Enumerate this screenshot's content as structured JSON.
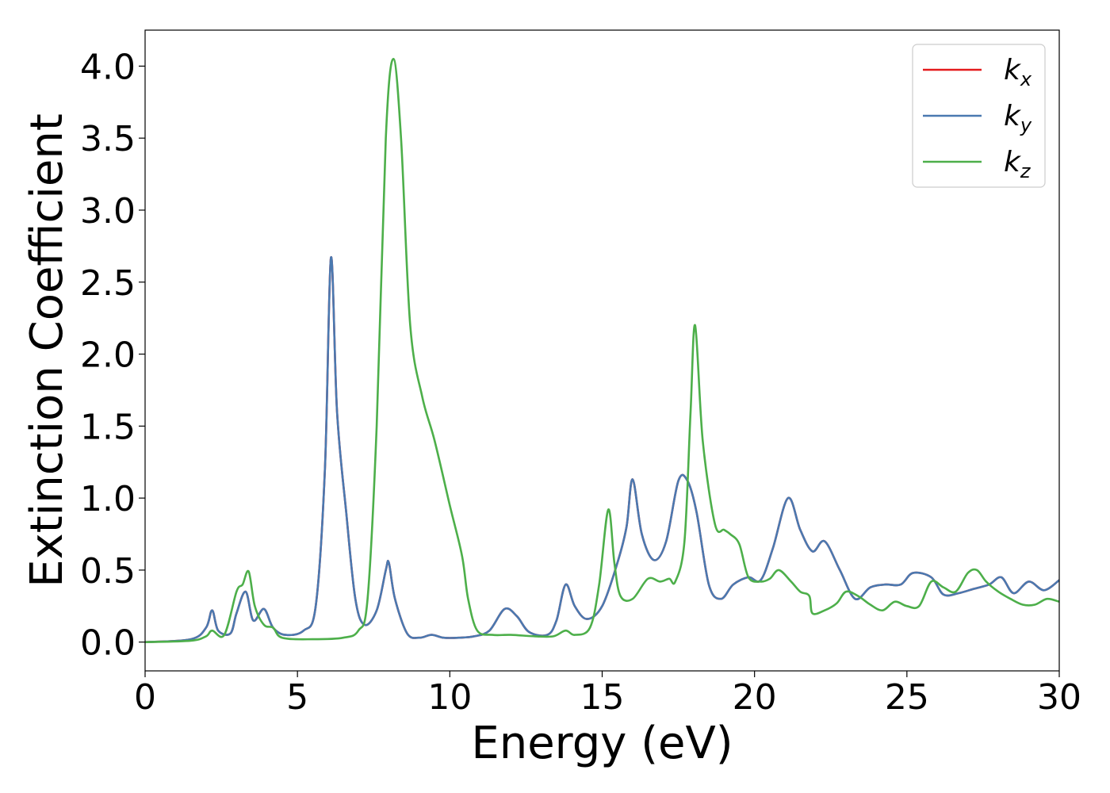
{
  "chart_data": {
    "type": "line",
    "title": "",
    "xlabel": "Energy (eV)",
    "ylabel": "Extinction Coefficient",
    "xlim": [
      0,
      30
    ],
    "ylim": [
      -0.2,
      4.25
    ],
    "xticks": [
      0,
      5,
      10,
      15,
      20,
      25,
      30
    ],
    "xtick_labels": [
      "0",
      "5",
      "10",
      "15",
      "20",
      "25",
      "30"
    ],
    "yticks": [
      0.0,
      0.5,
      1.0,
      1.5,
      2.0,
      2.5,
      3.0,
      3.5,
      4.0
    ],
    "ytick_labels": [
      "0.0",
      "0.5",
      "1.0",
      "1.5",
      "2.0",
      "2.5",
      "3.0",
      "3.5",
      "4.0"
    ],
    "grid": false,
    "legend_position": "top-right",
    "series": [
      {
        "name": "kx",
        "legend_base": "k",
        "legend_sub": "x",
        "color": "#e41a1c",
        "points": [
          [
            0,
            0.0
          ],
          [
            1.5,
            0.02
          ],
          [
            2.0,
            0.1
          ],
          [
            2.2,
            0.22
          ],
          [
            2.4,
            0.08
          ],
          [
            2.8,
            0.06
          ],
          [
            3.0,
            0.2
          ],
          [
            3.3,
            0.35
          ],
          [
            3.55,
            0.15
          ],
          [
            3.9,
            0.23
          ],
          [
            4.2,
            0.1
          ],
          [
            4.6,
            0.05
          ],
          [
            5.2,
            0.08
          ],
          [
            5.6,
            0.25
          ],
          [
            5.9,
            1.2
          ],
          [
            6.1,
            2.67
          ],
          [
            6.3,
            1.6
          ],
          [
            6.6,
            0.9
          ],
          [
            6.9,
            0.3
          ],
          [
            7.2,
            0.12
          ],
          [
            7.6,
            0.22
          ],
          [
            7.9,
            0.5
          ],
          [
            8.0,
            0.55
          ],
          [
            8.2,
            0.3
          ],
          [
            8.6,
            0.06
          ],
          [
            9.0,
            0.03
          ],
          [
            9.4,
            0.05
          ],
          [
            9.8,
            0.03
          ],
          [
            10.3,
            0.03
          ],
          [
            10.8,
            0.04
          ],
          [
            11.3,
            0.08
          ],
          [
            11.8,
            0.23
          ],
          [
            12.2,
            0.18
          ],
          [
            12.6,
            0.07
          ],
          [
            13.2,
            0.05
          ],
          [
            13.5,
            0.15
          ],
          [
            13.8,
            0.4
          ],
          [
            14.1,
            0.25
          ],
          [
            14.5,
            0.16
          ],
          [
            15.0,
            0.25
          ],
          [
            15.5,
            0.55
          ],
          [
            15.8,
            0.8
          ],
          [
            16.0,
            1.13
          ],
          [
            16.3,
            0.75
          ],
          [
            16.7,
            0.57
          ],
          [
            17.1,
            0.7
          ],
          [
            17.5,
            1.12
          ],
          [
            17.8,
            1.12
          ],
          [
            18.1,
            0.9
          ],
          [
            18.5,
            0.4
          ],
          [
            18.9,
            0.3
          ],
          [
            19.3,
            0.4
          ],
          [
            19.8,
            0.45
          ],
          [
            20.2,
            0.43
          ],
          [
            20.6,
            0.65
          ],
          [
            21.1,
            1.0
          ],
          [
            21.5,
            0.78
          ],
          [
            21.9,
            0.63
          ],
          [
            22.3,
            0.7
          ],
          [
            22.8,
            0.5
          ],
          [
            23.3,
            0.3
          ],
          [
            23.8,
            0.38
          ],
          [
            24.3,
            0.4
          ],
          [
            24.8,
            0.4
          ],
          [
            25.2,
            0.48
          ],
          [
            25.8,
            0.45
          ],
          [
            26.2,
            0.33
          ],
          [
            26.7,
            0.34
          ],
          [
            27.2,
            0.37
          ],
          [
            27.7,
            0.4
          ],
          [
            28.1,
            0.45
          ],
          [
            28.5,
            0.34
          ],
          [
            29.0,
            0.42
          ],
          [
            29.5,
            0.36
          ],
          [
            30.0,
            0.43
          ]
        ]
      },
      {
        "name": "ky",
        "legend_base": "k",
        "legend_sub": "y",
        "color": "#4a79b0",
        "points": [
          [
            0,
            0.0
          ],
          [
            1.5,
            0.02
          ],
          [
            2.0,
            0.1
          ],
          [
            2.2,
            0.22
          ],
          [
            2.4,
            0.08
          ],
          [
            2.8,
            0.06
          ],
          [
            3.0,
            0.2
          ],
          [
            3.3,
            0.35
          ],
          [
            3.55,
            0.15
          ],
          [
            3.9,
            0.23
          ],
          [
            4.2,
            0.1
          ],
          [
            4.6,
            0.05
          ],
          [
            5.2,
            0.08
          ],
          [
            5.6,
            0.25
          ],
          [
            5.9,
            1.2
          ],
          [
            6.1,
            2.67
          ],
          [
            6.3,
            1.6
          ],
          [
            6.6,
            0.9
          ],
          [
            6.9,
            0.3
          ],
          [
            7.2,
            0.12
          ],
          [
            7.6,
            0.22
          ],
          [
            7.9,
            0.5
          ],
          [
            8.0,
            0.55
          ],
          [
            8.2,
            0.3
          ],
          [
            8.6,
            0.06
          ],
          [
            9.0,
            0.03
          ],
          [
            9.4,
            0.05
          ],
          [
            9.8,
            0.03
          ],
          [
            10.3,
            0.03
          ],
          [
            10.8,
            0.04
          ],
          [
            11.3,
            0.08
          ],
          [
            11.8,
            0.23
          ],
          [
            12.2,
            0.18
          ],
          [
            12.6,
            0.07
          ],
          [
            13.2,
            0.05
          ],
          [
            13.5,
            0.15
          ],
          [
            13.8,
            0.4
          ],
          [
            14.1,
            0.25
          ],
          [
            14.5,
            0.16
          ],
          [
            15.0,
            0.25
          ],
          [
            15.5,
            0.55
          ],
          [
            15.8,
            0.8
          ],
          [
            16.0,
            1.13
          ],
          [
            16.3,
            0.75
          ],
          [
            16.7,
            0.57
          ],
          [
            17.1,
            0.7
          ],
          [
            17.5,
            1.12
          ],
          [
            17.8,
            1.12
          ],
          [
            18.1,
            0.9
          ],
          [
            18.5,
            0.4
          ],
          [
            18.9,
            0.3
          ],
          [
            19.3,
            0.4
          ],
          [
            19.8,
            0.45
          ],
          [
            20.2,
            0.43
          ],
          [
            20.6,
            0.65
          ],
          [
            21.1,
            1.0
          ],
          [
            21.5,
            0.78
          ],
          [
            21.9,
            0.63
          ],
          [
            22.3,
            0.7
          ],
          [
            22.8,
            0.5
          ],
          [
            23.3,
            0.3
          ],
          [
            23.8,
            0.38
          ],
          [
            24.3,
            0.4
          ],
          [
            24.8,
            0.4
          ],
          [
            25.2,
            0.48
          ],
          [
            25.8,
            0.45
          ],
          [
            26.2,
            0.33
          ],
          [
            26.7,
            0.34
          ],
          [
            27.2,
            0.37
          ],
          [
            27.7,
            0.4
          ],
          [
            28.1,
            0.45
          ],
          [
            28.5,
            0.34
          ],
          [
            29.0,
            0.42
          ],
          [
            29.5,
            0.36
          ],
          [
            30.0,
            0.43
          ]
        ]
      },
      {
        "name": "kz",
        "legend_base": "k",
        "legend_sub": "z",
        "color": "#4daf4a",
        "points": [
          [
            0,
            0.0
          ],
          [
            1.5,
            0.01
          ],
          [
            2.0,
            0.04
          ],
          [
            2.2,
            0.08
          ],
          [
            2.6,
            0.05
          ],
          [
            3.0,
            0.35
          ],
          [
            3.2,
            0.4
          ],
          [
            3.4,
            0.49
          ],
          [
            3.6,
            0.25
          ],
          [
            3.9,
            0.12
          ],
          [
            4.2,
            0.1
          ],
          [
            4.5,
            0.03
          ],
          [
            5.5,
            0.02
          ],
          [
            6.5,
            0.03
          ],
          [
            7.0,
            0.08
          ],
          [
            7.3,
            0.3
          ],
          [
            7.6,
            1.5
          ],
          [
            7.9,
            3.5
          ],
          [
            8.15,
            4.05
          ],
          [
            8.4,
            3.5
          ],
          [
            8.7,
            2.2
          ],
          [
            9.1,
            1.7
          ],
          [
            9.5,
            1.4
          ],
          [
            10.0,
            0.95
          ],
          [
            10.4,
            0.6
          ],
          [
            10.6,
            0.3
          ],
          [
            10.9,
            0.08
          ],
          [
            11.4,
            0.05
          ],
          [
            12.0,
            0.05
          ],
          [
            12.8,
            0.04
          ],
          [
            13.4,
            0.04
          ],
          [
            13.8,
            0.08
          ],
          [
            14.1,
            0.05
          ],
          [
            14.6,
            0.1
          ],
          [
            14.9,
            0.4
          ],
          [
            15.2,
            0.92
          ],
          [
            15.4,
            0.55
          ],
          [
            15.6,
            0.32
          ],
          [
            16.0,
            0.3
          ],
          [
            16.5,
            0.44
          ],
          [
            16.9,
            0.42
          ],
          [
            17.2,
            0.44
          ],
          [
            17.4,
            0.42
          ],
          [
            17.7,
            0.7
          ],
          [
            17.9,
            1.6
          ],
          [
            18.05,
            2.2
          ],
          [
            18.3,
            1.4
          ],
          [
            18.7,
            0.82
          ],
          [
            19.0,
            0.78
          ],
          [
            19.2,
            0.75
          ],
          [
            19.5,
            0.68
          ],
          [
            19.8,
            0.45
          ],
          [
            20.2,
            0.42
          ],
          [
            20.5,
            0.44
          ],
          [
            20.8,
            0.5
          ],
          [
            21.2,
            0.42
          ],
          [
            21.5,
            0.35
          ],
          [
            21.8,
            0.32
          ],
          [
            21.9,
            0.2
          ],
          [
            22.3,
            0.22
          ],
          [
            22.7,
            0.27
          ],
          [
            23.0,
            0.35
          ],
          [
            23.4,
            0.32
          ],
          [
            23.8,
            0.26
          ],
          [
            24.2,
            0.22
          ],
          [
            24.6,
            0.28
          ],
          [
            25.0,
            0.25
          ],
          [
            25.4,
            0.25
          ],
          [
            25.8,
            0.42
          ],
          [
            26.2,
            0.38
          ],
          [
            26.6,
            0.35
          ],
          [
            27.0,
            0.48
          ],
          [
            27.3,
            0.5
          ],
          [
            27.6,
            0.42
          ],
          [
            28.0,
            0.35
          ],
          [
            28.4,
            0.3
          ],
          [
            28.8,
            0.26
          ],
          [
            29.2,
            0.26
          ],
          [
            29.6,
            0.3
          ],
          [
            30.0,
            0.28
          ]
        ]
      }
    ]
  }
}
